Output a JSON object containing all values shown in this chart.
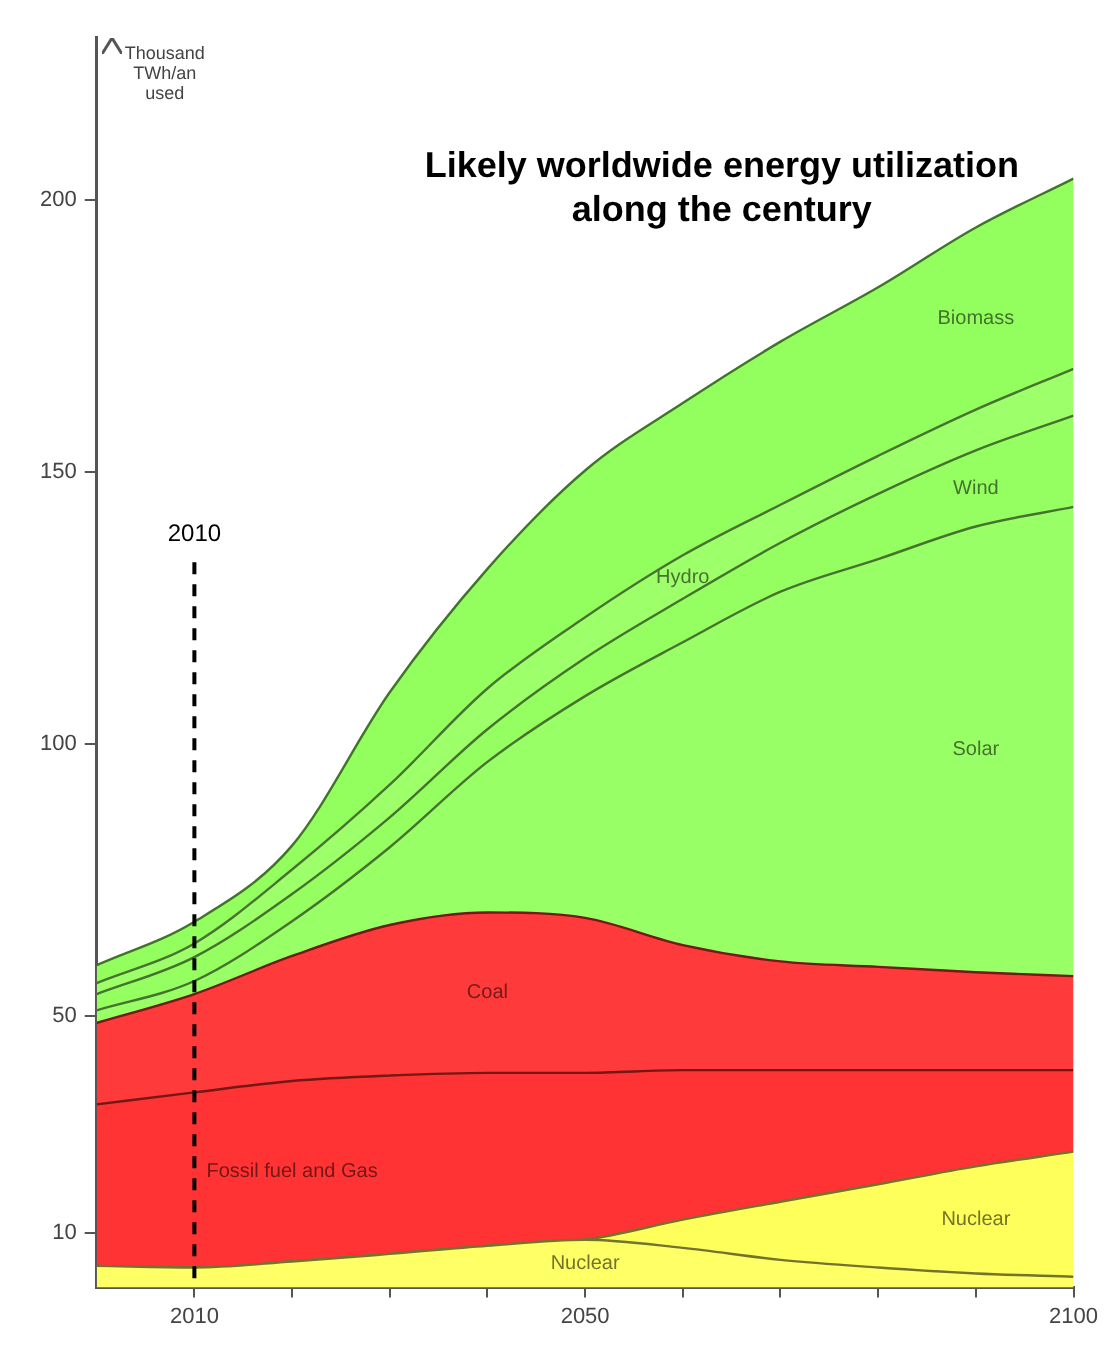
{
  "chart_data": {
    "type": "area",
    "title": "Likely worldwide energy utilization along the century",
    "ylabel": "Thousand TWh/an used",
    "x": [
      2000,
      2010,
      2020,
      2030,
      2040,
      2050,
      2060,
      2070,
      2080,
      2090,
      2100
    ],
    "stacked": true,
    "series": [
      {
        "name": "Nuclear",
        "color": "#ffff66",
        "values": [
          4.0,
          3.7,
          4.8,
          6.2,
          7.7,
          8.8,
          7.3,
          5.1,
          3.7,
          2.6,
          2.0
        ]
      },
      {
        "name": "Nuclear",
        "color": "#ffff5c",
        "values": [
          0,
          0,
          0,
          0,
          0,
          0,
          5.2,
          10.7,
          15.3,
          19.7,
          23
        ]
      },
      {
        "name": "Fossil fuel and Gas",
        "color": "#ff3333",
        "values": [
          29.7,
          32.2,
          33.2,
          32.8,
          31.8,
          30.7,
          27.5,
          24.2,
          21,
          17.7,
          15
        ]
      },
      {
        "name": "Coal",
        "color": "#ff3a3a",
        "values": [
          15,
          18.1,
          23,
          27.7,
          29.5,
          28.5,
          23,
          20,
          19,
          18,
          17.3
        ]
      },
      {
        "name": "Solar",
        "color": "#99ff66",
        "values": [
          2.3,
          2.4,
          6.4,
          14.3,
          27.7,
          40.8,
          55.7,
          68,
          75,
          82,
          86.3
        ]
      },
      {
        "name": "Wind",
        "color": "#95ff62",
        "values": [
          3,
          4.4,
          5,
          5.5,
          6,
          7,
          8,
          9,
          12,
          14,
          16.8
        ]
      },
      {
        "name": "Hydro",
        "color": "#9dff6a",
        "values": [
          2,
          2.5,
          4.5,
          6,
          7.5,
          7.5,
          8,
          7,
          7,
          7.5,
          8.6
        ]
      },
      {
        "name": "Biomass",
        "color": "#92ff5e",
        "values": [
          3.3,
          4,
          4.4,
          17,
          22,
          27,
          28,
          30,
          31,
          33.5,
          35
        ]
      }
    ],
    "xlim": [
      2000,
      2100
    ],
    "xticks": [
      2010,
      {
        "value": 2020,
        "label": null
      },
      {
        "value": 2030,
        "label": null
      },
      {
        "value": 2040,
        "label": null
      },
      2050,
      {
        "value": 2060,
        "label": null
      },
      {
        "value": 2070,
        "label": null
      },
      {
        "value": 2080,
        "label": null
      },
      {
        "value": 2090,
        "label": null
      },
      2100
    ],
    "ylim": [
      0,
      230
    ],
    "yticks": [
      10,
      50,
      100,
      150,
      200
    ],
    "ref_lines": [
      {
        "axis": "x",
        "value": 2010,
        "label": "2010",
        "color": "#000000",
        "line_style": "dashed"
      }
    ],
    "grid": false,
    "legend": false,
    "marker": "none",
    "line_style": "solid"
  }
}
